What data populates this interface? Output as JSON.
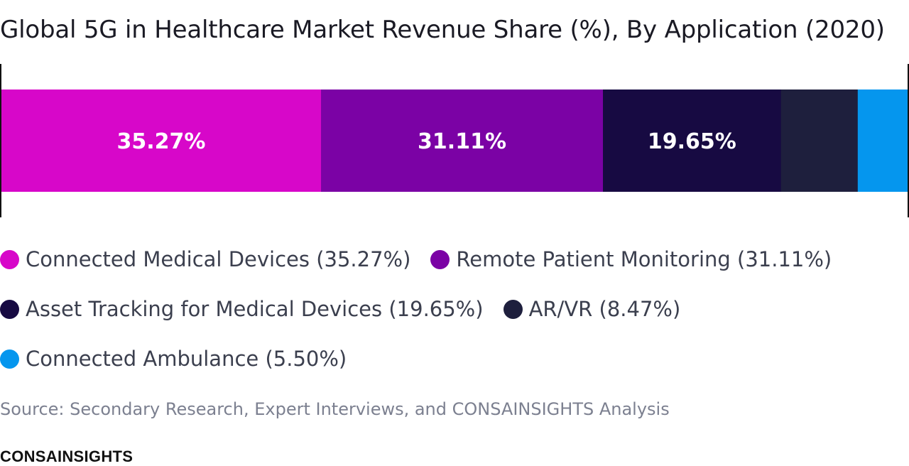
{
  "chart_data": {
    "type": "bar",
    "orientation": "horizontal-stacked-100",
    "title": "Global 5G in Healthcare Market Revenue Share (%), By Application (2020)",
    "categories": [
      "Connected Medical Devices",
      "Remote Patient Monitoring",
      "Asset Tracking for Medical Devices",
      "AR/VR",
      "Connected Ambulance"
    ],
    "values": [
      35.27,
      31.11,
      19.65,
      8.47,
      5.5
    ],
    "data_labels": [
      "35.27%",
      "31.11%",
      "19.65%",
      "",
      ""
    ],
    "colors": [
      "#d707c9",
      "#7b02a5",
      "#170a42",
      "#1e1f3d",
      "#0596ee"
    ],
    "legend_labels": [
      "Connected Medical Devices (35.27%)",
      "Remote Patient Monitoring (31.11%)",
      "Asset Tracking for Medical Devices (19.65%)",
      "AR/VR (8.47%)",
      "Connected Ambulance (5.50%)"
    ],
    "legend_placement": "bottom",
    "grid": false,
    "xlim": [
      0,
      100
    ]
  },
  "source": "Source: Secondary Research, Expert Interviews, and CONSAINSIGHTS Analysis",
  "brand": "CONSAINSIGHTS"
}
